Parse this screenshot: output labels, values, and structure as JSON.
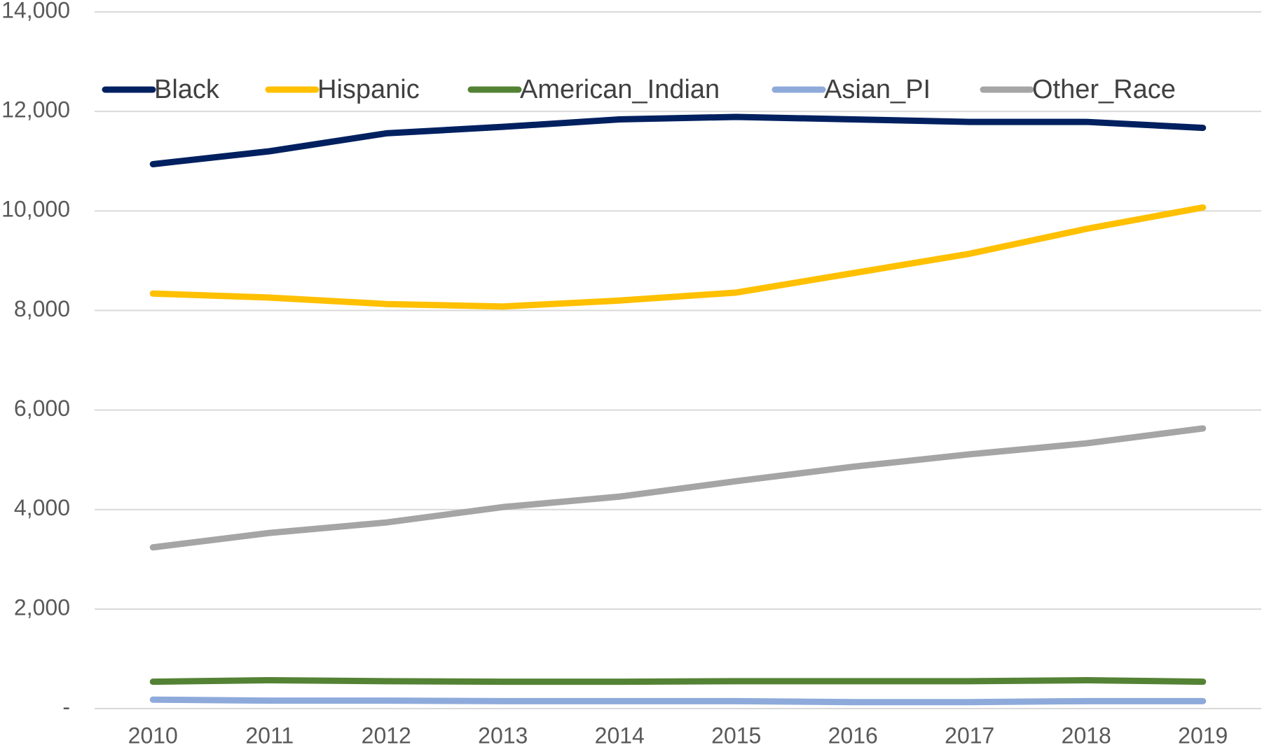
{
  "chart_data": {
    "type": "line",
    "categories": [
      "2010",
      "2011",
      "2012",
      "2013",
      "2014",
      "2015",
      "2016",
      "2017",
      "2018",
      "2019"
    ],
    "series": [
      {
        "name": "Black",
        "color": "#002060",
        "values": [
          10940,
          11200,
          11560,
          11690,
          11840,
          11890,
          11840,
          11790,
          11790,
          11670
        ]
      },
      {
        "name": "Hispanic",
        "color": "#ffc000",
        "values": [
          8340,
          8260,
          8130,
          8080,
          8200,
          8360,
          8750,
          9140,
          9640,
          10070
        ]
      },
      {
        "name": "American_Indian",
        "color": "#548235",
        "values": [
          540,
          570,
          550,
          540,
          540,
          550,
          550,
          550,
          570,
          540
        ]
      },
      {
        "name": "Asian_PI",
        "color": "#8eaadb",
        "values": [
          180,
          160,
          160,
          150,
          150,
          150,
          130,
          130,
          150,
          150
        ]
      },
      {
        "name": "Other_Race",
        "color": "#a5a5a5",
        "values": [
          3240,
          3530,
          3740,
          4050,
          4260,
          4570,
          4860,
          5110,
          5330,
          5630
        ]
      }
    ],
    "ylim": [
      0,
      14000
    ],
    "yticks": [
      {
        "value": 0,
        "label": "-"
      },
      {
        "value": 2000,
        "label": "2,000"
      },
      {
        "value": 4000,
        "label": "4,000"
      },
      {
        "value": 6000,
        "label": "6,000"
      },
      {
        "value": 8000,
        "label": "8,000"
      },
      {
        "value": 10000,
        "label": "10,000"
      },
      {
        "value": 12000,
        "label": "12,000"
      },
      {
        "value": 14000,
        "label": "14,000"
      }
    ],
    "grid": true,
    "legend": "top"
  }
}
